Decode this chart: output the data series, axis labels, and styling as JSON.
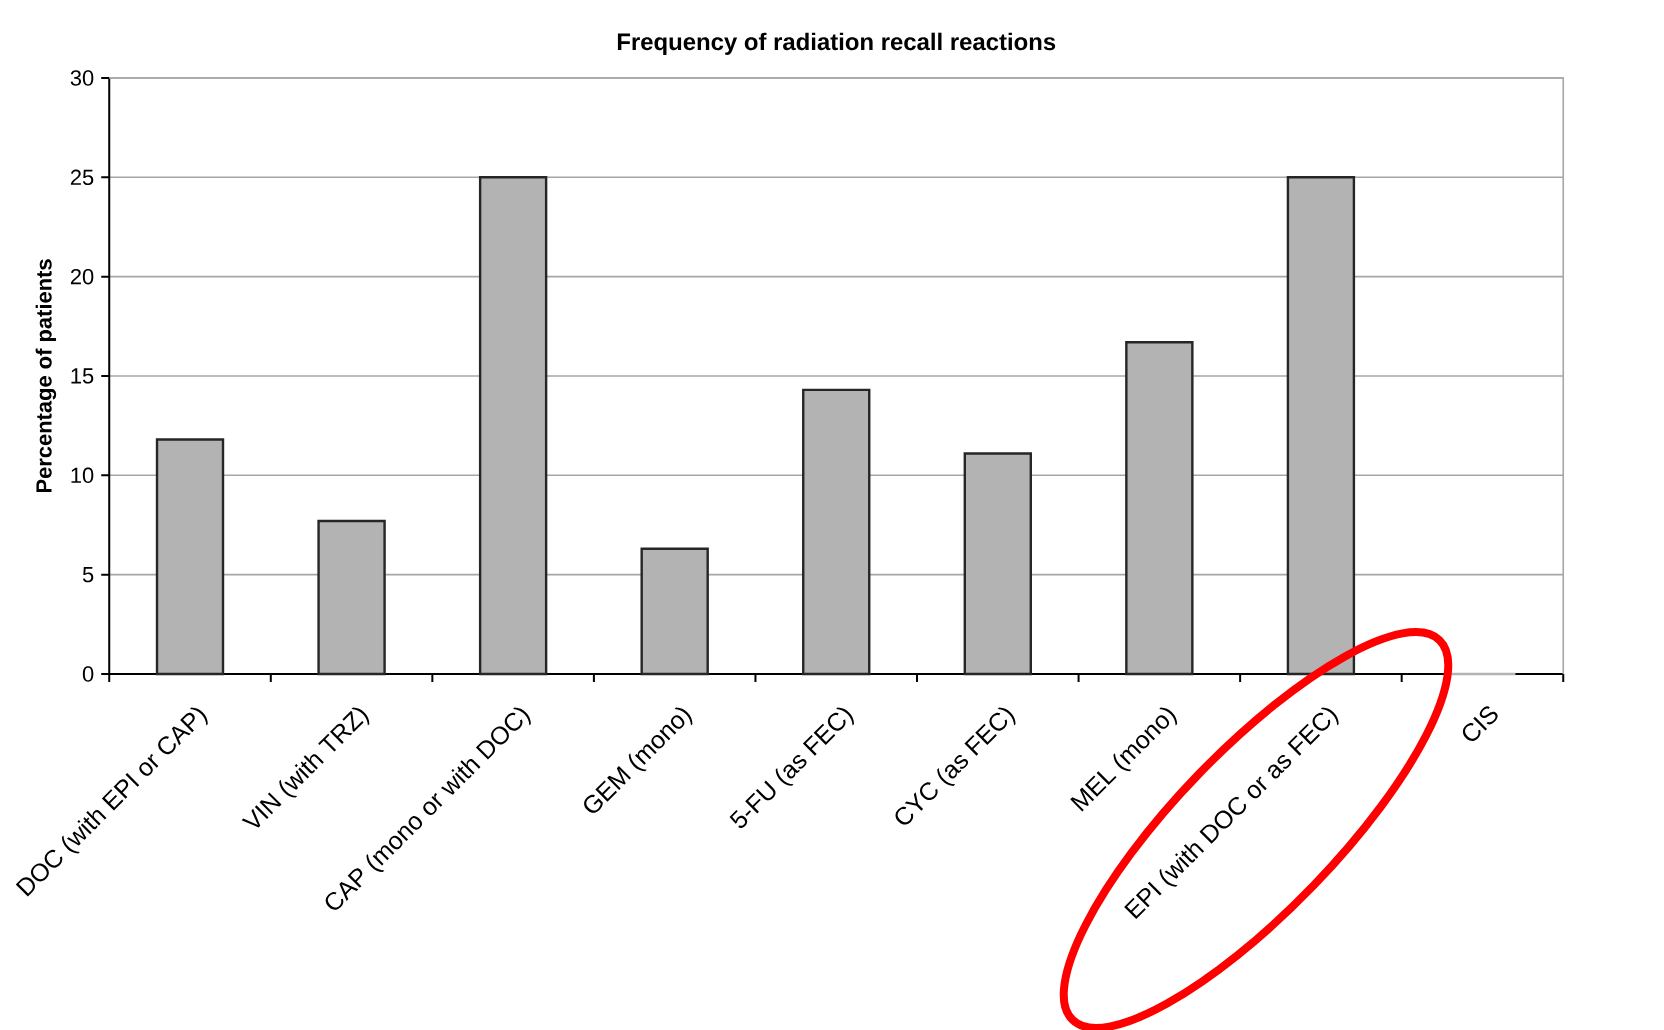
{
  "chart_data": {
    "type": "bar",
    "title": "Frequency of radiation recall reactions",
    "ylabel": "Percentage of patients",
    "categories": [
      "DOC (with EPI or CAP)",
      "VIN (with TRZ)",
      "CAP (mono or with DOC)",
      "GEM (mono)",
      "5-FU (as FEC)",
      "CYC (as FEC)",
      "MEL (mono)",
      "EPI (with DOC or as FEC)",
      "CIS"
    ],
    "values": [
      11.8,
      7.7,
      25,
      6.3,
      14.3,
      11.1,
      16.7,
      25,
      0
    ],
    "color": "#b3b3b3",
    "ylim": [
      0,
      30
    ],
    "yticks": [
      0,
      5,
      10,
      15,
      20,
      25,
      30
    ],
    "grid": "y"
  }
}
